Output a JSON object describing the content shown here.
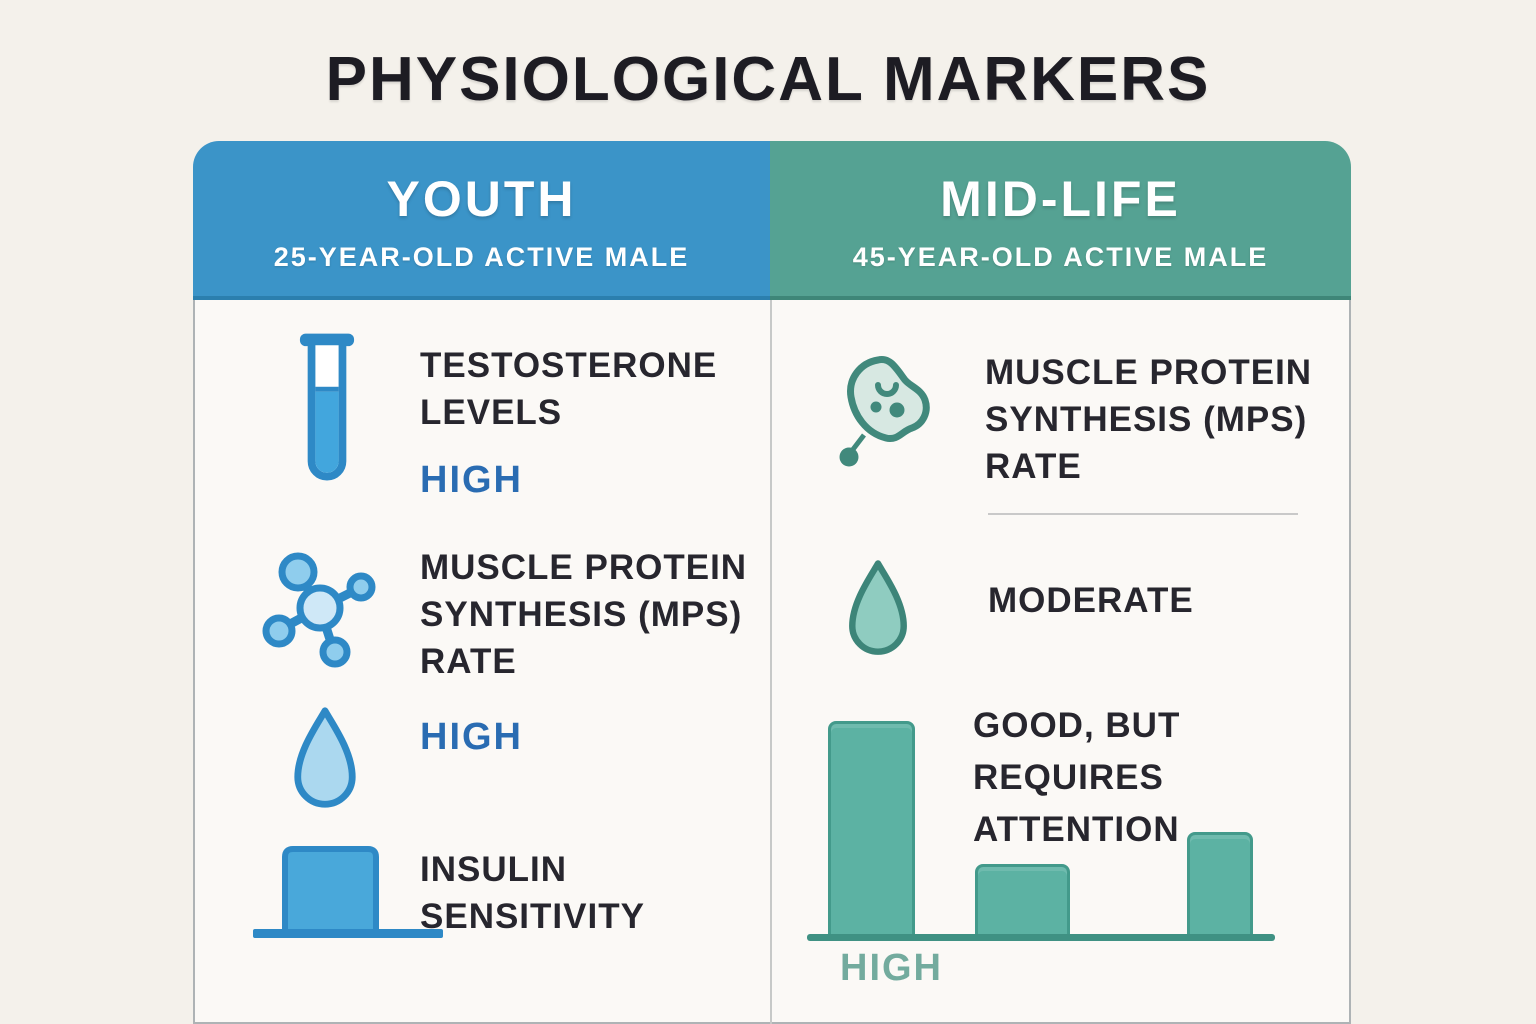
{
  "title": "PHYSIOLOGICAL MARKERS",
  "youth_column": {
    "header": {
      "title": "YOUTH",
      "subtitle": "25-YEAR-OLD ACTIVE MALE"
    },
    "rows": [
      {
        "icon": "test-tube-icon",
        "label": "TESTOSTERONE LEVELS",
        "value": "HIGH"
      },
      {
        "icon": "molecule-icon",
        "label": "MUSCLE PROTEIN SYNTHESIS (MPS) RATE"
      },
      {
        "icon": "water-drop-icon",
        "value": "HIGH"
      },
      {
        "icon": "insulin-bar-icon",
        "label": "INSULIN SENSITIVITY"
      }
    ]
  },
  "midlife_column": {
    "header": {
      "title": "MID-LIFE",
      "subtitle": "45-YEAR-OLD ACTIVE MALE"
    },
    "rows": [
      {
        "icon": "muscle-cell-icon",
        "label": "MUSCLE PROTEIN SYNTHESIS (MPS) RATE"
      },
      {
        "icon": "water-drop-icon",
        "label": "MODERATE"
      },
      {
        "icon": "mini-bar-chart",
        "label": "GOOD, BUT REQUIRES ATTENTION",
        "value": "HIGH"
      }
    ]
  },
  "chart_data": {
    "type": "bar",
    "values": [
      100,
      34,
      49
    ],
    "ylim": [
      0,
      100
    ],
    "bar_label": "HIGH",
    "grid": false,
    "axes_labeled": false,
    "bar_color": "#5cb2a3",
    "baseline_color": "#3f9183"
  },
  "colors": {
    "page_bg": "#f4f1eb",
    "card_bg": "#fbf9f6",
    "youth_header": "#3b94c8",
    "midlife_header": "#55a293",
    "blue_icon_stroke": "#2e89c6",
    "blue_icon_fill": "#49a8da",
    "blue_icon_fill_light": "#a9d7ef",
    "teal_icon_stroke": "#3d8579",
    "teal_icon_fill": "#8fccc0",
    "value_blue": "#2a6cb2",
    "value_teal": "#73ab9e",
    "dark_text": "#27262e"
  },
  "icons": [
    "test-tube-icon",
    "molecule-icon",
    "water-drop-icon",
    "insulin-bar-icon",
    "muscle-cell-icon",
    "mini-bar-chart"
  ]
}
